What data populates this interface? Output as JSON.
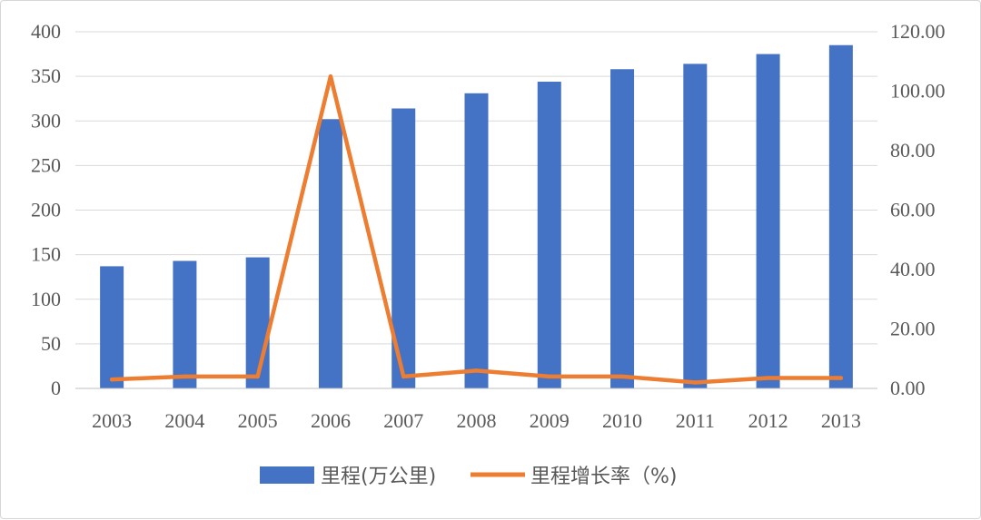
{
  "chart_data": {
    "type": "bar",
    "categories": [
      "2003",
      "2004",
      "2005",
      "2006",
      "2007",
      "2008",
      "2009",
      "2010",
      "2011",
      "2012",
      "2013"
    ],
    "series": [
      {
        "name": "里程(万公里)",
        "chart_type": "bar",
        "axis": "left",
        "color": "#4472C4",
        "values": [
          137,
          143,
          147,
          302,
          314,
          331,
          344,
          358,
          364,
          375,
          385
        ]
      },
      {
        "name": "里程增长率（%)",
        "chart_type": "line",
        "axis": "right",
        "color": "#ED7D31",
        "values": [
          3.0,
          4.0,
          4.0,
          105.0,
          4.0,
          6.0,
          4.0,
          4.0,
          2.0,
          3.5,
          3.5
        ]
      }
    ],
    "y_left": {
      "ylim": [
        0,
        400
      ],
      "ticks": [
        "0",
        "50",
        "100",
        "150",
        "200",
        "250",
        "300",
        "350",
        "400"
      ]
    },
    "y_right": {
      "ylim": [
        0,
        120
      ],
      "ticks": [
        "0.00",
        "20.00",
        "40.00",
        "60.00",
        "80.00",
        "100.00",
        "120.00"
      ]
    },
    "grid": true,
    "legend_position": "bottom",
    "title": "",
    "xlabel": "",
    "ylabel": ""
  }
}
